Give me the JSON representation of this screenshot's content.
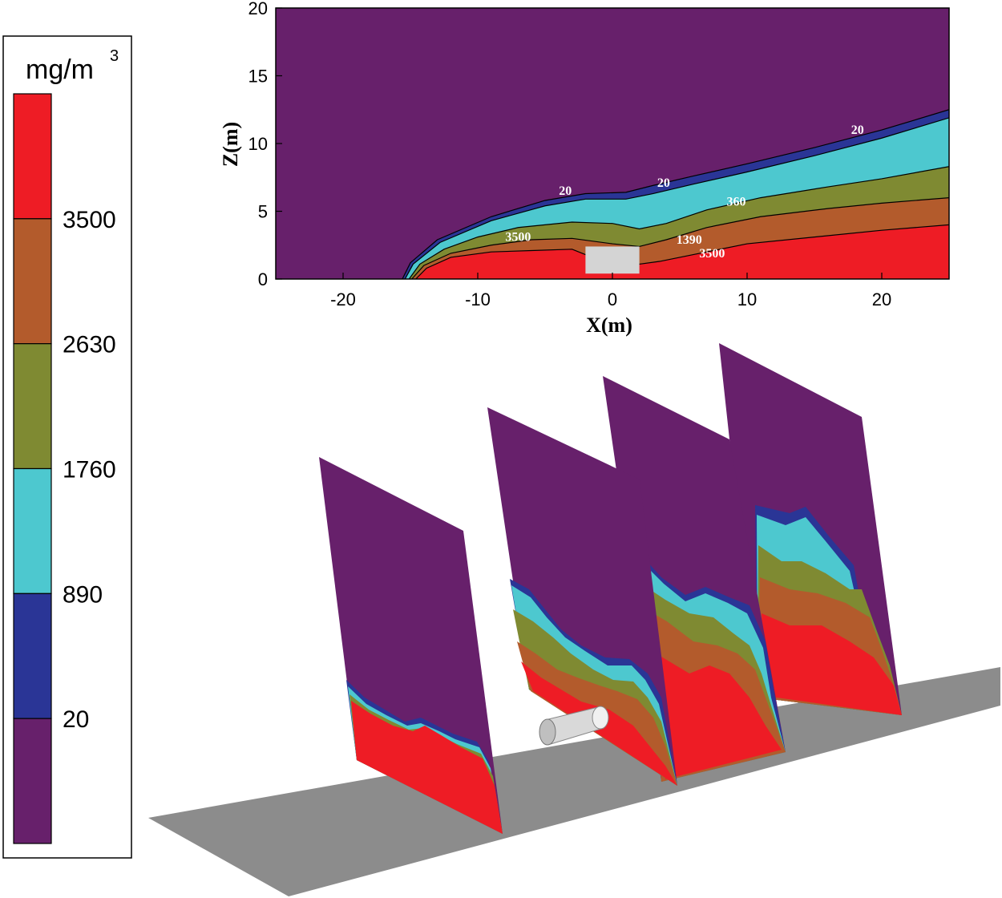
{
  "chart_data": [
    {
      "type": "contour",
      "title": "",
      "xlabel": "X(m)",
      "ylabel": "Z(m)",
      "xlim": [
        -25,
        25
      ],
      "ylim": [
        0,
        20
      ],
      "xticks": [
        "-20",
        "-10",
        "0",
        "10",
        "20"
      ],
      "xtick_values": [
        -20,
        -10,
        0,
        10,
        20
      ],
      "yticks": [
        "0",
        "5",
        "10",
        "15",
        "20"
      ],
      "ytick_values": [
        0,
        5,
        10,
        15,
        20
      ],
      "contour_labels": [
        {
          "text": "20",
          "x": -3.5,
          "y": 6.2
        },
        {
          "text": "20",
          "x": 3.8,
          "y": 6.8
        },
        {
          "text": "20",
          "x": 18.2,
          "y": 10.7
        },
        {
          "text": "360",
          "x": 9.2,
          "y": 5.4
        },
        {
          "text": "3500",
          "x": -7.0,
          "y": 2.8
        },
        {
          "text": "1390",
          "x": 5.7,
          "y": 2.6
        },
        {
          "text": "3500",
          "x": 7.4,
          "y": 1.6
        }
      ],
      "boundaries": [
        {
          "level": 20,
          "points": [
            [
              -15.6,
              0
            ],
            [
              -15,
              1.2
            ],
            [
              -13,
              2.9
            ],
            [
              -9,
              4.6
            ],
            [
              -5,
              5.8
            ],
            [
              -2,
              6.3
            ],
            [
              1,
              6.4
            ],
            [
              3,
              6.9
            ],
            [
              6,
              7.6
            ],
            [
              10,
              8.5
            ],
            [
              15,
              9.7
            ],
            [
              20,
              11.0
            ],
            [
              25,
              12.5
            ]
          ]
        },
        {
          "level": 890,
          "points": [
            [
              -15.4,
              0
            ],
            [
              -14.8,
              1.1
            ],
            [
              -12.8,
              2.7
            ],
            [
              -9,
              4.3
            ],
            [
              -5,
              5.4
            ],
            [
              -2,
              5.9
            ],
            [
              1,
              5.9
            ],
            [
              3,
              6.3
            ],
            [
              6,
              7.0
            ],
            [
              10,
              7.9
            ],
            [
              15,
              9.1
            ],
            [
              20,
              10.4
            ],
            [
              25,
              11.9
            ]
          ]
        },
        {
          "level": 1760,
          "points": [
            [
              -15.1,
              0
            ],
            [
              -14.3,
              1.1
            ],
            [
              -12.5,
              2.2
            ],
            [
              -10,
              3.1
            ],
            [
              -7,
              3.8
            ],
            [
              -3,
              4.2
            ],
            [
              0,
              4.1
            ],
            [
              2,
              3.7
            ],
            [
              4,
              4.1
            ],
            [
              7,
              5.1
            ],
            [
              11,
              6.0
            ],
            [
              16,
              6.8
            ],
            [
              20,
              7.4
            ],
            [
              25,
              8.3
            ]
          ]
        },
        {
          "level": 2630,
          "points": [
            [
              -14.9,
              0
            ],
            [
              -14,
              1.0
            ],
            [
              -12,
              1.9
            ],
            [
              -9,
              2.5
            ],
            [
              -6,
              2.9
            ],
            [
              -3,
              3.0
            ],
            [
              0,
              2.6
            ],
            [
              2,
              2.4
            ],
            [
              4,
              2.9
            ],
            [
              7,
              3.8
            ],
            [
              11,
              4.6
            ],
            [
              16,
              5.2
            ],
            [
              20,
              5.6
            ],
            [
              25,
              6.0
            ]
          ]
        },
        {
          "level": 3500,
          "points": [
            [
              -14.6,
              0
            ],
            [
              -13.8,
              0.8
            ],
            [
              -12,
              1.6
            ],
            [
              -9,
              2.0
            ],
            [
              -6,
              2.1
            ],
            [
              -3,
              2.2
            ],
            [
              -1.5,
              1.6
            ],
            [
              -0.3,
              1.0
            ],
            [
              0.8,
              0.8
            ],
            [
              2,
              1.1
            ],
            [
              3.5,
              1.3
            ],
            [
              6,
              1.8
            ],
            [
              10,
              2.6
            ],
            [
              15,
              3.1
            ],
            [
              20,
              3.6
            ],
            [
              25,
              4.0
            ]
          ]
        }
      ],
      "obstacle": {
        "x_range": [
          -2,
          2
        ],
        "z_range": [
          0.4,
          2.4
        ]
      }
    },
    {
      "type": "3d_slices",
      "title": "",
      "slice_count": 4
    }
  ],
  "colorbar": {
    "unit": "mg/m",
    "unit_superscript": "3",
    "levels": [
      {
        "label": "",
        "color": "#ee1c25"
      },
      {
        "label": "3500",
        "color": "#b35b2c"
      },
      {
        "label": "2630",
        "color": "#7f8a32"
      },
      {
        "label": "1760",
        "color": "#4dc8cf"
      },
      {
        "label": "890",
        "color": "#2a3596"
      },
      {
        "label": "20",
        "color": "#67206b"
      }
    ]
  },
  "colors": {
    "purple": "#67206b",
    "navy": "#2a3596",
    "cyan": "#4dc8cf",
    "olive": "#7f8a32",
    "brown": "#b35b2c",
    "red": "#ee1c25",
    "ground": "#8c8c8c",
    "obstacle": "#d4d4d4"
  }
}
